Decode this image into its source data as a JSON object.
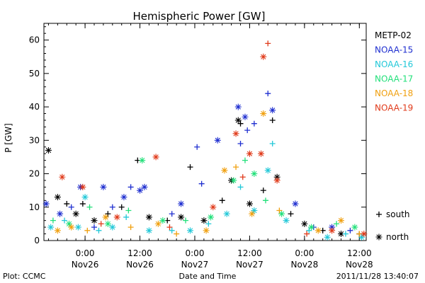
{
  "chart_data": {
    "type": "scatter",
    "title": "Hemispheric Power [GW]",
    "xlabel": "Date and Time",
    "ylabel": "P [GW]",
    "ylim": [
      0,
      65
    ],
    "yticks": [
      0,
      10,
      20,
      30,
      40,
      50,
      60
    ],
    "xlim": [
      "2011-11-25 15:00",
      "2011-11-28 13:30"
    ],
    "xticks": [
      {
        "t": "2011-11-26 00:00",
        "line1": "0:00",
        "line2": "Nov26"
      },
      {
        "t": "2011-11-26 12:00",
        "line1": "12:00",
        "line2": "Nov26"
      },
      {
        "t": "2011-11-27 00:00",
        "line1": "0:00",
        "line2": "Nov27"
      },
      {
        "t": "2011-11-27 12:00",
        "line1": "12:00",
        "line2": "Nov27"
      },
      {
        "t": "2011-11-28 00:00",
        "line1": "0:00",
        "line2": "Nov28"
      },
      {
        "t": "2011-11-28 12:00",
        "line1": "12:00",
        "line2": "Nov28"
      }
    ],
    "symbol_legend": [
      {
        "symbol": "+",
        "label": "south"
      },
      {
        "symbol": "*",
        "label": "north"
      }
    ],
    "series": [
      {
        "name": "METP-02",
        "color": "#000000",
        "points": [
          {
            "x": "2011-11-25 16:00",
            "y": 27,
            "m": "*"
          },
          {
            "x": "2011-11-25 18:00",
            "y": 13,
            "m": "*"
          },
          {
            "x": "2011-11-25 20:00",
            "y": 11,
            "m": "+"
          },
          {
            "x": "2011-11-25 22:00",
            "y": 8,
            "m": "*"
          },
          {
            "x": "2011-11-25 23:30",
            "y": 11,
            "m": "+"
          },
          {
            "x": "2011-11-26 02:00",
            "y": 6,
            "m": "*"
          },
          {
            "x": "2011-11-26 05:00",
            "y": 8,
            "m": "+"
          },
          {
            "x": "2011-11-26 08:00",
            "y": 10,
            "m": "+"
          },
          {
            "x": "2011-11-26 11:30",
            "y": 24,
            "m": "+"
          },
          {
            "x": "2011-11-26 14:00",
            "y": 7,
            "m": "*"
          },
          {
            "x": "2011-11-26 18:00",
            "y": 6,
            "m": "+"
          },
          {
            "x": "2011-11-26 21:00",
            "y": 7,
            "m": "*"
          },
          {
            "x": "2011-11-26 23:00",
            "y": 22,
            "m": "+"
          },
          {
            "x": "2011-11-27 02:00",
            "y": 6,
            "m": "*"
          },
          {
            "x": "2011-11-27 06:00",
            "y": 12,
            "m": "+"
          },
          {
            "x": "2011-11-27 08:00",
            "y": 18,
            "m": "*"
          },
          {
            "x": "2011-11-27 09:30",
            "y": 36,
            "m": "*"
          },
          {
            "x": "2011-11-27 10:00",
            "y": 35,
            "m": "+"
          },
          {
            "x": "2011-11-27 12:00",
            "y": 11,
            "m": "*"
          },
          {
            "x": "2011-11-27 15:00",
            "y": 15,
            "m": "+"
          },
          {
            "x": "2011-11-27 17:00",
            "y": 36,
            "m": "+"
          },
          {
            "x": "2011-11-27 18:00",
            "y": 19,
            "m": "*"
          },
          {
            "x": "2011-11-27 21:00",
            "y": 8,
            "m": "+"
          },
          {
            "x": "2011-11-28 00:00",
            "y": 5,
            "m": "*"
          },
          {
            "x": "2011-11-28 04:00",
            "y": 3,
            "m": "+"
          },
          {
            "x": "2011-11-28 08:00",
            "y": 2,
            "m": "*"
          },
          {
            "x": "2011-11-28 12:00",
            "y": 2,
            "m": "+"
          }
        ]
      },
      {
        "name": "NOAA-15",
        "color": "#1f2fd0",
        "points": [
          {
            "x": "2011-11-25 15:30",
            "y": 11,
            "m": "*"
          },
          {
            "x": "2011-11-25 18:30",
            "y": 8,
            "m": "*"
          },
          {
            "x": "2011-11-25 21:00",
            "y": 10,
            "m": "+"
          },
          {
            "x": "2011-11-25 23:00",
            "y": 16,
            "m": "*"
          },
          {
            "x": "2011-11-26 02:00",
            "y": 4,
            "m": "+"
          },
          {
            "x": "2011-11-26 04:00",
            "y": 16,
            "m": "*"
          },
          {
            "x": "2011-11-26 06:00",
            "y": 10,
            "m": "+"
          },
          {
            "x": "2011-11-26 08:30",
            "y": 13,
            "m": "*"
          },
          {
            "x": "2011-11-26 10:00",
            "y": 16,
            "m": "+"
          },
          {
            "x": "2011-11-26 12:00",
            "y": 15,
            "m": "*"
          },
          {
            "x": "2011-11-26 13:00",
            "y": 16,
            "m": "*"
          },
          {
            "x": "2011-11-26 19:00",
            "y": 8,
            "m": "+"
          },
          {
            "x": "2011-11-26 21:00",
            "y": 11,
            "m": "*"
          },
          {
            "x": "2011-11-27 00:30",
            "y": 28,
            "m": "+"
          },
          {
            "x": "2011-11-27 01:30",
            "y": 17,
            "m": "+"
          },
          {
            "x": "2011-11-27 05:00",
            "y": 30,
            "m": "*"
          },
          {
            "x": "2011-11-27 09:30",
            "y": 40,
            "m": "*"
          },
          {
            "x": "2011-11-27 10:00",
            "y": 29,
            "m": "+"
          },
          {
            "x": "2011-11-27 11:00",
            "y": 37,
            "m": "*"
          },
          {
            "x": "2011-11-27 11:30",
            "y": 33,
            "m": "+"
          },
          {
            "x": "2011-11-27 13:00",
            "y": 35,
            "m": "+"
          },
          {
            "x": "2011-11-27 16:00",
            "y": 44,
            "m": "+"
          },
          {
            "x": "2011-11-27 17:00",
            "y": 39,
            "m": "*"
          },
          {
            "x": "2011-11-27 22:00",
            "y": 11,
            "m": "*"
          },
          {
            "x": "2011-11-28 02:00",
            "y": 4,
            "m": "+"
          },
          {
            "x": "2011-11-28 06:00",
            "y": 4,
            "m": "*"
          },
          {
            "x": "2011-11-28 10:00",
            "y": 3,
            "m": "+"
          }
        ]
      },
      {
        "name": "NOAA-16",
        "color": "#22c8d8",
        "points": [
          {
            "x": "2011-11-25 16:30",
            "y": 4,
            "m": "*"
          },
          {
            "x": "2011-11-25 19:30",
            "y": 6,
            "m": "+"
          },
          {
            "x": "2011-11-25 22:30",
            "y": 4,
            "m": "*"
          },
          {
            "x": "2011-11-26 00:00",
            "y": 13,
            "m": "*"
          },
          {
            "x": "2011-11-26 03:00",
            "y": 3,
            "m": "+"
          },
          {
            "x": "2011-11-26 06:00",
            "y": 4,
            "m": "*"
          },
          {
            "x": "2011-11-26 09:00",
            "y": 7,
            "m": "+"
          },
          {
            "x": "2011-11-26 14:00",
            "y": 3,
            "m": "*"
          },
          {
            "x": "2011-11-26 19:00",
            "y": 3,
            "m": "+"
          },
          {
            "x": "2011-11-26 23:00",
            "y": 3,
            "m": "*"
          },
          {
            "x": "2011-11-27 03:00",
            "y": 5,
            "m": "+"
          },
          {
            "x": "2011-11-27 07:00",
            "y": 8,
            "m": "*"
          },
          {
            "x": "2011-11-27 10:00",
            "y": 16,
            "m": "+"
          },
          {
            "x": "2011-11-27 13:00",
            "y": 9,
            "m": "*"
          },
          {
            "x": "2011-11-27 16:00",
            "y": 21,
            "m": "*"
          },
          {
            "x": "2011-11-27 17:00",
            "y": 29,
            "m": "+"
          },
          {
            "x": "2011-11-27 20:00",
            "y": 6,
            "m": "*"
          },
          {
            "x": "2011-11-28 01:00",
            "y": 3,
            "m": "+"
          },
          {
            "x": "2011-11-28 05:00",
            "y": 1,
            "m": "*"
          },
          {
            "x": "2011-11-28 09:00",
            "y": 2,
            "m": "+"
          },
          {
            "x": "2011-11-28 12:30",
            "y": 1,
            "m": "*"
          }
        ]
      },
      {
        "name": "NOAA-17",
        "color": "#22e07a",
        "points": [
          {
            "x": "2011-11-25 17:00",
            "y": 6,
            "m": "+"
          },
          {
            "x": "2011-11-25 20:30",
            "y": 5,
            "m": "*"
          },
          {
            "x": "2011-11-26 01:00",
            "y": 10,
            "m": "+"
          },
          {
            "x": "2011-11-26 05:00",
            "y": 5,
            "m": "*"
          },
          {
            "x": "2011-11-26 09:30",
            "y": 9,
            "m": "+"
          },
          {
            "x": "2011-11-26 12:30",
            "y": 24,
            "m": "*"
          },
          {
            "x": "2011-11-26 17:00",
            "y": 6,
            "m": "*"
          },
          {
            "x": "2011-11-26 22:00",
            "y": 6,
            "m": "+"
          },
          {
            "x": "2011-11-27 03:30",
            "y": 7,
            "m": "*"
          },
          {
            "x": "2011-11-27 08:30",
            "y": 18,
            "m": "*"
          },
          {
            "x": "2011-11-27 11:00",
            "y": 24,
            "m": "+"
          },
          {
            "x": "2011-11-27 13:00",
            "y": 20,
            "m": "*"
          },
          {
            "x": "2011-11-27 15:30",
            "y": 12,
            "m": "+"
          },
          {
            "x": "2011-11-27 19:00",
            "y": 8,
            "m": "*"
          },
          {
            "x": "2011-11-28 01:30",
            "y": 4,
            "m": "*"
          },
          {
            "x": "2011-11-28 07:00",
            "y": 5,
            "m": "+"
          },
          {
            "x": "2011-11-28 11:00",
            "y": 4,
            "m": "*"
          }
        ]
      },
      {
        "name": "NOAA-18",
        "color": "#f0a010",
        "points": [
          {
            "x": "2011-11-25 18:00",
            "y": 3,
            "m": "*"
          },
          {
            "x": "2011-11-25 21:00",
            "y": 4,
            "m": "*"
          },
          {
            "x": "2011-11-26 00:30",
            "y": 3,
            "m": "+"
          },
          {
            "x": "2011-11-26 04:30",
            "y": 7,
            "m": "*"
          },
          {
            "x": "2011-11-26 10:00",
            "y": 4,
            "m": "+"
          },
          {
            "x": "2011-11-26 16:00",
            "y": 5,
            "m": "*"
          },
          {
            "x": "2011-11-26 20:00",
            "y": 2,
            "m": "+"
          },
          {
            "x": "2011-11-27 02:30",
            "y": 3,
            "m": "*"
          },
          {
            "x": "2011-11-27 06:30",
            "y": 21,
            "m": "*"
          },
          {
            "x": "2011-11-27 09:00",
            "y": 22,
            "m": "+"
          },
          {
            "x": "2011-11-27 12:30",
            "y": 8,
            "m": "*"
          },
          {
            "x": "2011-11-27 15:00",
            "y": 38,
            "m": "*"
          },
          {
            "x": "2011-11-27 18:30",
            "y": 9,
            "m": "+"
          },
          {
            "x": "2011-11-28 03:00",
            "y": 3,
            "m": "*"
          },
          {
            "x": "2011-11-28 08:00",
            "y": 6,
            "m": "*"
          },
          {
            "x": "2011-11-28 12:00",
            "y": 2,
            "m": "+"
          }
        ]
      },
      {
        "name": "NOAA-19",
        "color": "#e03a1a",
        "points": [
          {
            "x": "2011-11-25 19:00",
            "y": 19,
            "m": "*"
          },
          {
            "x": "2011-11-25 23:30",
            "y": 16,
            "m": "*"
          },
          {
            "x": "2011-11-26 03:30",
            "y": 5,
            "m": "+"
          },
          {
            "x": "2011-11-26 07:00",
            "y": 7,
            "m": "*"
          },
          {
            "x": "2011-11-26 15:30",
            "y": 25,
            "m": "*"
          },
          {
            "x": "2011-11-26 18:30",
            "y": 4,
            "m": "+"
          },
          {
            "x": "2011-11-27 04:00",
            "y": 10,
            "m": "*"
          },
          {
            "x": "2011-11-27 09:00",
            "y": 32,
            "m": "*"
          },
          {
            "x": "2011-11-27 10:30",
            "y": 19,
            "m": "+"
          },
          {
            "x": "2011-11-27 12:00",
            "y": 26,
            "m": "*"
          },
          {
            "x": "2011-11-27 14:30",
            "y": 26,
            "m": "*"
          },
          {
            "x": "2011-11-27 15:00",
            "y": 55,
            "m": "*"
          },
          {
            "x": "2011-11-27 16:00",
            "y": 59,
            "m": "+"
          },
          {
            "x": "2011-11-27 18:00",
            "y": 18,
            "m": "*"
          },
          {
            "x": "2011-11-28 00:30",
            "y": 2,
            "m": "+"
          },
          {
            "x": "2011-11-28 06:00",
            "y": 3,
            "m": "*"
          },
          {
            "x": "2011-11-28 13:00",
            "y": 2,
            "m": "*"
          }
        ]
      }
    ]
  },
  "footer": {
    "left": "Plot: CCMC",
    "center": "Date and Time",
    "right": "2011/11/28 13:40:07"
  }
}
